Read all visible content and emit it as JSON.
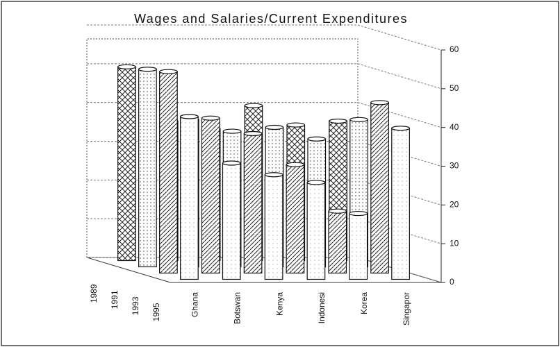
{
  "chart_data": {
    "type": "bar3d",
    "title": "Wages and Salaries/Current Expenditures",
    "categories": [
      "Ghana",
      "Botswan",
      "Kenya",
      "Indonesi",
      "Korea",
      "Singapor"
    ],
    "series": [
      {
        "name": "1989",
        "color": "#ffffff",
        "values": [
          50,
          36,
          34,
          40,
          35,
          36
        ]
      },
      {
        "name": "1991",
        "color": "#ffffff",
        "values": [
          51,
          38,
          35,
          36,
          33,
          38
        ]
      },
      {
        "name": "1993",
        "color": "#ffffff",
        "values": [
          52,
          40,
          36,
          28,
          16,
          44
        ]
      },
      {
        "name": "1995",
        "color": "#ffffff",
        "values": [
          42,
          30,
          27,
          25,
          17,
          39
        ]
      }
    ],
    "ylim": [
      0,
      60
    ],
    "yticks": [
      0,
      10,
      20,
      30,
      40,
      50,
      60
    ],
    "grid": true
  }
}
